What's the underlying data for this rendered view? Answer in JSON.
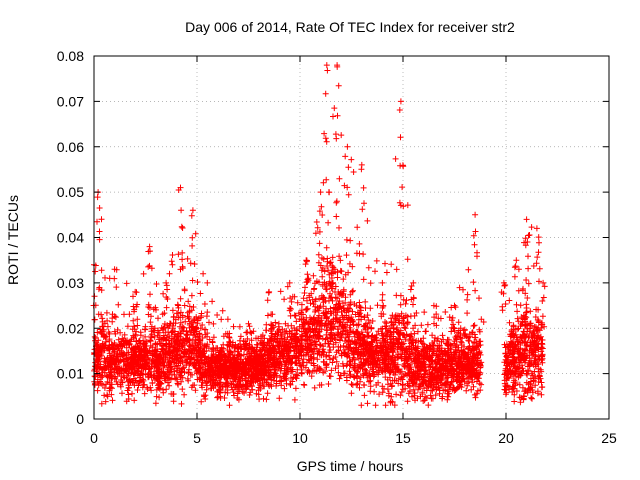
{
  "chart_data": {
    "type": "scatter",
    "title": "Day 006 of 2014, Rate Of TEC Index for receiver str2",
    "xlabel": "GPS time / hours",
    "ylabel": "ROTI / TECUs",
    "xlim": [
      0,
      25
    ],
    "ylim": [
      0,
      0.08
    ],
    "x_ticks": [
      0,
      5,
      10,
      15,
      20,
      25
    ],
    "y_ticks": [
      0,
      0.01,
      0.02,
      0.03,
      0.04,
      0.05,
      0.06,
      0.07,
      0.08
    ],
    "x_tick_labels": [
      "0",
      "5",
      "10",
      "15",
      "20",
      "25"
    ],
    "y_tick_labels": [
      "0",
      "0.01",
      "0.02",
      "0.03",
      "0.04",
      "0.05",
      "0.06",
      "0.07",
      "0.08"
    ],
    "grid": true,
    "marker": "+",
    "series": [
      {
        "name": "ROTI str2",
        "color": "#ff0000",
        "segments": [
          {
            "t_start": 0.0,
            "t_end": 18.8,
            "note": "continuous coverage"
          },
          {
            "t_start": 19.9,
            "t_end": 21.8,
            "note": "continuous coverage"
          }
        ],
        "envelope": [
          {
            "x": 0.0,
            "base": 0.012,
            "spread": 0.004,
            "max": 0.034
          },
          {
            "x": 0.2,
            "base": 0.014,
            "spread": 0.006,
            "max": 0.05
          },
          {
            "x": 1.0,
            "base": 0.013,
            "spread": 0.005,
            "max": 0.033
          },
          {
            "x": 2.0,
            "base": 0.012,
            "spread": 0.005,
            "max": 0.028
          },
          {
            "x": 2.7,
            "base": 0.013,
            "spread": 0.005,
            "max": 0.038
          },
          {
            "x": 3.5,
            "base": 0.013,
            "spread": 0.005,
            "max": 0.03
          },
          {
            "x": 4.2,
            "base": 0.016,
            "spread": 0.007,
            "max": 0.051
          },
          {
            "x": 4.8,
            "base": 0.016,
            "spread": 0.007,
            "max": 0.046
          },
          {
            "x": 5.5,
            "base": 0.011,
            "spread": 0.004,
            "max": 0.03
          },
          {
            "x": 6.5,
            "base": 0.011,
            "spread": 0.004,
            "max": 0.022
          },
          {
            "x": 7.5,
            "base": 0.011,
            "spread": 0.004,
            "max": 0.021
          },
          {
            "x": 8.5,
            "base": 0.013,
            "spread": 0.005,
            "max": 0.028
          },
          {
            "x": 9.5,
            "base": 0.014,
            "spread": 0.005,
            "max": 0.03
          },
          {
            "x": 10.3,
            "base": 0.017,
            "spread": 0.006,
            "max": 0.035
          },
          {
            "x": 11.0,
            "base": 0.02,
            "spread": 0.008,
            "max": 0.05
          },
          {
            "x": 11.3,
            "base": 0.022,
            "spread": 0.01,
            "max": 0.078
          },
          {
            "x": 11.8,
            "base": 0.022,
            "spread": 0.01,
            "max": 0.078
          },
          {
            "x": 12.3,
            "base": 0.019,
            "spread": 0.008,
            "max": 0.06
          },
          {
            "x": 13.0,
            "base": 0.015,
            "spread": 0.006,
            "max": 0.056
          },
          {
            "x": 14.0,
            "base": 0.013,
            "spread": 0.005,
            "max": 0.03
          },
          {
            "x": 14.9,
            "base": 0.016,
            "spread": 0.008,
            "max": 0.07
          },
          {
            "x": 15.5,
            "base": 0.012,
            "spread": 0.005,
            "max": 0.03
          },
          {
            "x": 16.5,
            "base": 0.011,
            "spread": 0.004,
            "max": 0.025
          },
          {
            "x": 17.5,
            "base": 0.012,
            "spread": 0.005,
            "max": 0.025
          },
          {
            "x": 18.5,
            "base": 0.012,
            "spread": 0.005,
            "max": 0.045
          },
          {
            "x": 18.8,
            "base": 0.012,
            "spread": 0.004,
            "max": 0.022
          },
          {
            "x": 19.9,
            "base": 0.011,
            "spread": 0.004,
            "max": 0.03
          },
          {
            "x": 20.5,
            "base": 0.013,
            "spread": 0.006,
            "max": 0.035
          },
          {
            "x": 21.0,
            "base": 0.015,
            "spread": 0.008,
            "max": 0.044
          },
          {
            "x": 21.5,
            "base": 0.015,
            "spread": 0.007,
            "max": 0.042
          },
          {
            "x": 21.8,
            "base": 0.013,
            "spread": 0.005,
            "max": 0.03
          }
        ],
        "min_value": 0.003
      }
    ]
  }
}
